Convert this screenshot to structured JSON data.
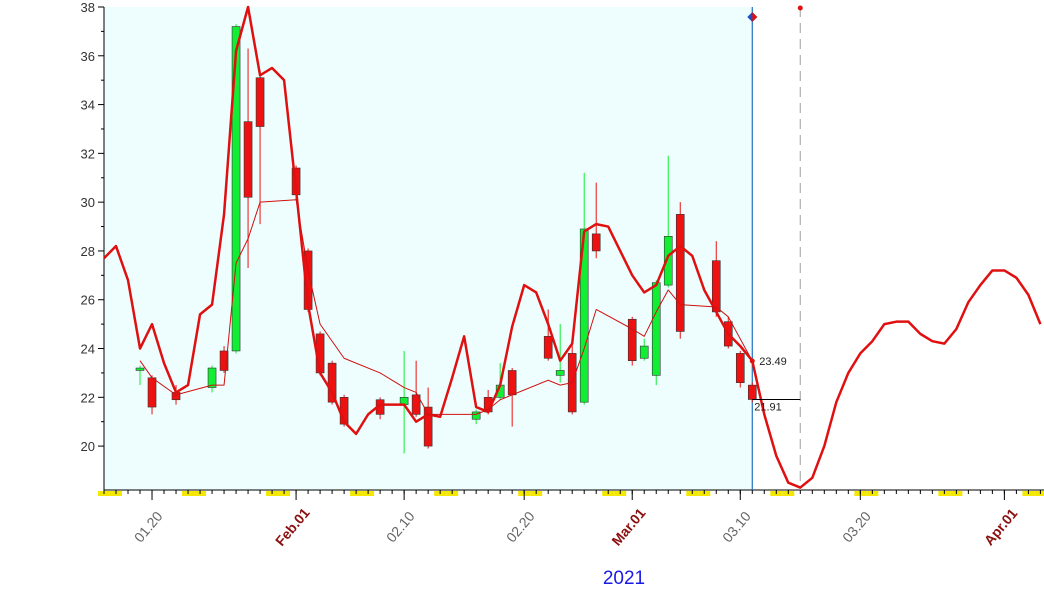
{
  "chart_data": {
    "type": "candlestick",
    "xlabel": "2021",
    "xlim": [
      16,
      94.3
    ],
    "ylim": [
      18.2,
      38
    ],
    "yticks": [
      20,
      22,
      24,
      26,
      28,
      30,
      32,
      34,
      36,
      38
    ],
    "xticks": [
      {
        "value": 20,
        "label": "01.20"
      },
      {
        "value": 32,
        "label": "Feb.01"
      },
      {
        "value": 41,
        "label": "02.10"
      },
      {
        "value": 51,
        "label": "02.20"
      },
      {
        "value": 60,
        "label": "Mar.01"
      },
      {
        "value": 69,
        "label": "03.10"
      },
      {
        "value": 79,
        "label": "03.20"
      },
      {
        "value": 91,
        "label": "Apr.01"
      }
    ],
    "candles": {
      "up_color": "#11ee33",
      "down_color": "#ee1111",
      "x": [
        19,
        20,
        22,
        25,
        26,
        27,
        28,
        29,
        32,
        33,
        34,
        35,
        36,
        39,
        41,
        42,
        43,
        47,
        48,
        49,
        50,
        53,
        54,
        55,
        56,
        57,
        60,
        61,
        62,
        63,
        64,
        67,
        68,
        69,
        70
      ],
      "open": [
        23.1,
        22.8,
        22.2,
        22.4,
        23.9,
        23.9,
        33.3,
        35.1,
        31.4,
        28.0,
        24.6,
        23.4,
        22.0,
        21.9,
        21.7,
        22.1,
        21.6,
        21.1,
        22.0,
        22.0,
        23.1,
        24.5,
        22.9,
        23.8,
        21.8,
        28.7,
        25.2,
        23.6,
        22.9,
        26.6,
        29.5,
        27.6,
        25.1,
        23.8,
        22.5
      ],
      "high": [
        23.3,
        22.9,
        22.5,
        23.3,
        24.1,
        37.3,
        36.3,
        35.4,
        31.5,
        28.1,
        24.7,
        23.5,
        22.1,
        22.0,
        23.9,
        23.5,
        22.4,
        21.5,
        22.3,
        23.4,
        23.2,
        25.6,
        25.0,
        24.3,
        31.2,
        30.8,
        25.3,
        24.4,
        26.8,
        31.9,
        30.0,
        28.4,
        25.3,
        23.9,
        22.6
      ],
      "low": [
        22.5,
        21.3,
        21.7,
        22.2,
        23.0,
        23.8,
        27.3,
        29.1,
        30.1,
        25.5,
        22.9,
        21.7,
        20.8,
        21.1,
        19.7,
        21.2,
        19.9,
        20.9,
        21.3,
        21.9,
        20.8,
        23.5,
        22.6,
        21.3,
        21.7,
        27.7,
        23.3,
        23.5,
        22.5,
        26.5,
        24.4,
        25.3,
        24.0,
        22.4,
        21.8
      ],
      "close": [
        23.2,
        21.6,
        21.9,
        23.2,
        23.1,
        37.2,
        30.2,
        33.1,
        30.3,
        25.6,
        23.0,
        21.8,
        20.9,
        21.3,
        22.0,
        21.3,
        20.0,
        21.4,
        21.4,
        22.5,
        22.1,
        23.6,
        23.1,
        21.4,
        28.9,
        28.0,
        23.5,
        24.1,
        26.7,
        28.6,
        24.7,
        25.5,
        24.1,
        22.6,
        21.91
      ]
    },
    "series": [
      {
        "color": "#e01010",
        "width": 2.5,
        "x": [
          16,
          17,
          18,
          19,
          20,
          21,
          22,
          23,
          24,
          25,
          26,
          27,
          28,
          29,
          30,
          31,
          32,
          33,
          34,
          35,
          36,
          37,
          38,
          39,
          40,
          41,
          42,
          43,
          44,
          45,
          46,
          47,
          48,
          49,
          50,
          51,
          52,
          53,
          54,
          55,
          56,
          57,
          58,
          59,
          60,
          61,
          62,
          63,
          64,
          65,
          66,
          67,
          68,
          69,
          70,
          71,
          72,
          73,
          74,
          75,
          76,
          77,
          78,
          79,
          80,
          81,
          82,
          83,
          84,
          85,
          86,
          87,
          88,
          89,
          90,
          91,
          92,
          93,
          94
        ],
        "values": [
          27.7,
          28.2,
          26.8,
          24.0,
          25.0,
          23.4,
          22.2,
          22.5,
          25.4,
          25.8,
          29.5,
          36.2,
          38.0,
          35.2,
          35.5,
          35.0,
          30.5,
          25.8,
          23.0,
          22.2,
          21.0,
          20.5,
          21.3,
          21.7,
          21.7,
          21.7,
          21.0,
          21.3,
          21.2,
          22.8,
          24.5,
          21.6,
          21.4,
          22.5,
          24.9,
          26.6,
          26.3,
          25.0,
          23.5,
          24.2,
          28.8,
          29.1,
          29.0,
          28.0,
          27.0,
          26.3,
          26.6,
          27.8,
          28.2,
          27.8,
          26.4,
          25.5,
          24.6,
          24.1,
          23.5,
          21.3,
          19.6,
          18.5,
          18.3,
          18.7,
          20.0,
          21.8,
          23.0,
          23.8,
          24.3,
          25.0,
          25.1,
          25.1,
          24.6,
          24.3,
          24.2,
          24.8,
          25.9,
          26.6,
          27.2,
          27.2,
          26.9,
          26.2,
          25.0
        ]
      },
      {
        "color": "#d01010",
        "width": 1,
        "x": [
          19,
          20,
          22,
          25,
          26,
          27,
          28,
          29,
          32,
          33,
          34,
          36,
          39,
          41,
          42,
          43,
          47,
          48,
          49,
          53,
          54,
          55,
          56,
          57,
          60,
          61,
          62,
          63,
          64,
          67,
          68,
          70
        ],
        "values": [
          23.5,
          22.8,
          22.1,
          22.5,
          22.5,
          27.5,
          28.5,
          30.0,
          30.1,
          27.2,
          25.0,
          23.6,
          23.0,
          22.4,
          22.2,
          21.3,
          21.3,
          21.5,
          21.9,
          22.7,
          22.5,
          22.6,
          24.0,
          25.6,
          24.8,
          24.5,
          25.5,
          26.4,
          25.8,
          25.7,
          25.3,
          23.49
        ]
      }
    ],
    "vlines": [
      {
        "x": 70,
        "color": "#1f6fc0"
      },
      {
        "x": 74,
        "color": "#b0b0b0",
        "dashed": true
      }
    ],
    "shade_color": "#eefefe"
  }
}
